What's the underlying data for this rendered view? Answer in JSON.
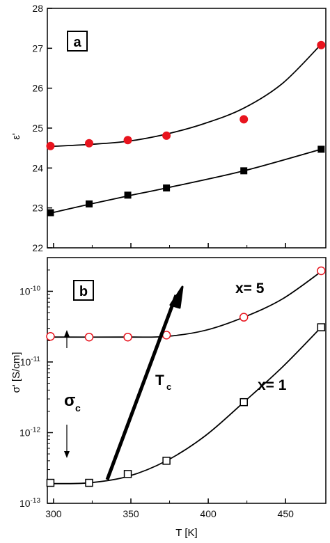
{
  "chart_data": [
    {
      "type": "scatter",
      "panel_label": "a",
      "ylabel": "ε'",
      "xlim": [
        296,
        476
      ],
      "ylim": [
        22,
        28
      ],
      "x_ticks": [
        300,
        350,
        400,
        450
      ],
      "y_ticks": [
        22,
        23,
        24,
        25,
        26,
        27,
        28
      ],
      "series": [
        {
          "marker": "circle-filled",
          "color": "#e8141e",
          "x": [
            298,
            323,
            348,
            373,
            423,
            473
          ],
          "y": [
            24.55,
            24.62,
            24.7,
            24.81,
            25.22,
            27.08
          ],
          "fit": [
            [
              298,
              24.54
            ],
            [
              323,
              24.59
            ],
            [
              348,
              24.67
            ],
            [
              373,
              24.85
            ],
            [
              398,
              25.12
            ],
            [
              423,
              25.5
            ],
            [
              448,
              26.12
            ],
            [
              473,
              27.1
            ]
          ]
        },
        {
          "marker": "square-filled",
          "color": "#000000",
          "x": [
            298,
            323,
            348,
            373,
            423,
            473
          ],
          "y": [
            22.88,
            23.1,
            23.32,
            23.5,
            23.93,
            24.47
          ],
          "fit": [
            [
              298,
              22.87
            ],
            [
              323,
              23.09
            ],
            [
              348,
              23.3
            ],
            [
              373,
              23.5
            ],
            [
              423,
              23.93
            ],
            [
              473,
              24.47
            ]
          ]
        }
      ]
    },
    {
      "type": "scatter",
      "panel_label": "b",
      "xlabel": "T [K]",
      "ylabel": "σ' [S/cm]",
      "y_scale": "log",
      "xlim": [
        296,
        476
      ],
      "ylim": [
        1e-13,
        3e-10
      ],
      "x_ticks": [
        300,
        350,
        400,
        450
      ],
      "y_ticks": [
        1e-13,
        1e-12,
        1e-11,
        1e-10
      ],
      "y_tick_labels": [
        {
          "base": "10",
          "exp": "-13"
        },
        {
          "base": "10",
          "exp": "-12"
        },
        {
          "base": "10",
          "exp": "-11"
        },
        {
          "base": "10",
          "exp": "-10"
        }
      ],
      "series": [
        {
          "name": "x= 5",
          "marker": "circle-open",
          "color": "#e8141e",
          "x": [
            298,
            323,
            348,
            373,
            423,
            473
          ],
          "y": [
            2.3e-11,
            2.25e-11,
            2.25e-11,
            2.4e-11,
            4.3e-11,
            1.95e-10
          ],
          "fit": [
            [
              298,
              2.25e-11
            ],
            [
              348,
              2.25e-11
            ],
            [
              373,
              2.3e-11
            ],
            [
              398,
              2.8e-11
            ],
            [
              423,
              4.3e-11
            ],
            [
              448,
              7.8e-11
            ],
            [
              473,
              1.9e-10
            ]
          ]
        },
        {
          "name": "x= 1",
          "marker": "square-open",
          "color": "#000000",
          "x": [
            298,
            323,
            348,
            373,
            423,
            473
          ],
          "y": [
            1.95e-13,
            1.95e-13,
            2.6e-13,
            4e-13,
            2.7e-12,
            3.1e-11
          ],
          "fit": [
            [
              298,
              1.9e-13
            ],
            [
              323,
              1.95e-13
            ],
            [
              348,
              2.4e-13
            ],
            [
              373,
              4e-13
            ],
            [
              398,
              9e-13
            ],
            [
              423,
              2.7e-12
            ],
            [
              448,
              8.5e-12
            ],
            [
              473,
              3.1e-11
            ]
          ]
        }
      ],
      "annotations": {
        "sigma_c": {
          "label": "σ",
          "subscript": "c"
        },
        "t_c": {
          "label": "T",
          "subscript": "c"
        }
      }
    }
  ]
}
